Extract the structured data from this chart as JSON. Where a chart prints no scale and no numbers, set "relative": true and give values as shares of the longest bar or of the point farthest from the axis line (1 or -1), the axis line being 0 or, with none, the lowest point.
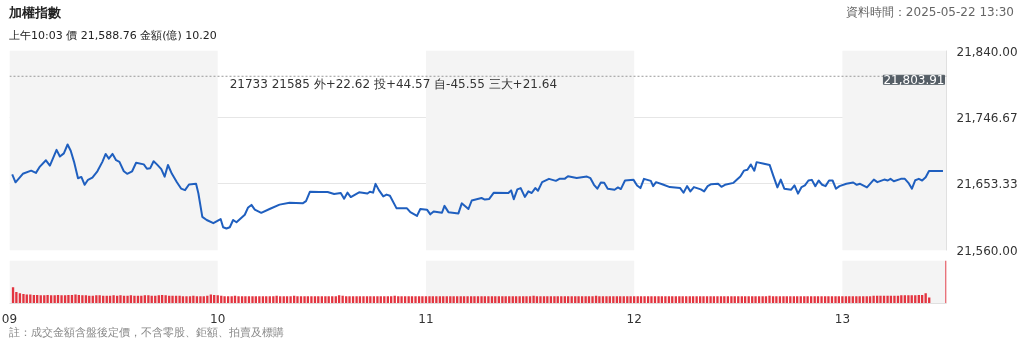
{
  "chart_data": [
    {
      "type": "line",
      "title": "加權指數",
      "subtitle": "上午10:03  價 21,588.76  金額(億) 10.20",
      "annotations": [
        "資料時間：2025-05-22 13:30",
        "21733  21585  外+22.62  投+44.57  自-45.55  三大+21.64"
      ],
      "xlim": [
        9,
        13.5
      ],
      "ylim": [
        21560,
        21840
      ],
      "yticks": [
        {
          "value": 21560,
          "label": "21,560.00"
        },
        {
          "value": 21653.33,
          "label": "21,653.33"
        },
        {
          "value": 21746.67,
          "label": "21,746.67"
        },
        {
          "value": 21840,
          "label": "21,840.00"
        }
      ],
      "tick_labels": "y",
      "grid": "y",
      "ref_lines": [
        {
          "axis": "y",
          "value": 21803.91,
          "label": "21,803.91",
          "color": "#999999",
          "line_style": "dotted"
        }
      ],
      "bands": [
        {
          "axis": "x",
          "from": 9,
          "to": 10,
          "label": null,
          "color": "#f4f4f4"
        },
        {
          "axis": "x",
          "from": 11,
          "to": 12,
          "label": null,
          "color": "#f4f4f4"
        },
        {
          "axis": "x",
          "from": 13,
          "to": 13.5,
          "label": null,
          "color": "#f4f4f4"
        }
      ],
      "series": [
        {
          "color": "#1f5fbf",
          "x": [
            9.013,
            9.029,
            9.064,
            9.104,
            9.127,
            9.146,
            9.175,
            9.194,
            9.226,
            9.242,
            9.261,
            9.279,
            9.294,
            9.31,
            9.329,
            9.345,
            9.361,
            9.377,
            9.398,
            9.422,
            9.446,
            9.462,
            9.477,
            9.495,
            9.512,
            9.528,
            9.549,
            9.565,
            9.589,
            9.608,
            9.645,
            9.66,
            9.676,
            9.692,
            9.708,
            9.729,
            9.745,
            9.761,
            9.78,
            9.804,
            9.824,
            9.843,
            9.862,
            9.896,
            9.907,
            9.926,
            9.947,
            9.979,
            10.014,
            10.026,
            10.042,
            10.058,
            10.074,
            10.09,
            10.13,
            10.146,
            10.162,
            10.178,
            10.209,
            10.249,
            10.297,
            10.345,
            10.408,
            10.424,
            10.443,
            10.488,
            10.528,
            10.559,
            10.591,
            10.607,
            10.623,
            10.639,
            10.679,
            10.719,
            10.731,
            10.746,
            10.758,
            10.774,
            10.795,
            10.811,
            10.827,
            10.859,
            10.909,
            10.925,
            10.957,
            10.973,
            11.005,
            11.021,
            11.037,
            11.077,
            11.089,
            11.108,
            11.156,
            11.172,
            11.204,
            11.22,
            11.267,
            11.283,
            11.304,
            11.326,
            11.396,
            11.409,
            11.422,
            11.439,
            11.455,
            11.475,
            11.492,
            11.508,
            11.525,
            11.538,
            11.558,
            11.591,
            11.624,
            11.641,
            11.666,
            11.682,
            11.724,
            11.773,
            11.79,
            11.807,
            11.823,
            11.84,
            11.856,
            11.873,
            11.906,
            11.922,
            11.936,
            11.956,
            11.997,
            12.014,
            12.03,
            12.047,
            12.08,
            12.091,
            12.105,
            12.138,
            12.171,
            12.221,
            12.237,
            12.254,
            12.27,
            12.287,
            12.32,
            12.336,
            12.353,
            12.37,
            12.403,
            12.419,
            12.436,
            12.477,
            12.494,
            12.51,
            12.527,
            12.544,
            12.56,
            12.577,
            12.588,
            12.618,
            12.651,
            12.668,
            12.688,
            12.704,
            12.721,
            12.754,
            12.77,
            12.787,
            12.804,
            12.82,
            12.837,
            12.853,
            12.87,
            12.886,
            12.903,
            12.919,
            12.936,
            12.953,
            12.969,
            12.986,
            13.019,
            13.052,
            13.069,
            13.085,
            13.118,
            13.151,
            13.168,
            13.201,
            13.218,
            13.231,
            13.247,
            13.281,
            13.3,
            13.317,
            13.334,
            13.35,
            13.367,
            13.383,
            13.4,
            13.416,
            13.483
          ],
          "values": [
            21666.5,
            21655.5,
            21667.4,
            21671.8,
            21668.7,
            21677.5,
            21686.3,
            21678.9,
            21700.9,
            21691.6,
            21696.0,
            21708.4,
            21699.6,
            21684.1,
            21661.2,
            21663.0,
            21652.0,
            21659.0,
            21662.1,
            21670.9,
            21684.1,
            21695.2,
            21688.6,
            21695.2,
            21686.4,
            21684.1,
            21670.9,
            21667.4,
            21670.9,
            21682.8,
            21680.6,
            21674.5,
            21675.3,
            21685.0,
            21680.6,
            21674.0,
            21663.4,
            21679.7,
            21667.4,
            21655.5,
            21646.7,
            21644.5,
            21652.4,
            21653.3,
            21640.1,
            21607.1,
            21602.7,
            21598.3,
            21604.0,
            21592.5,
            21590.8,
            21592.5,
            21602.7,
            21599.6,
            21610.1,
            21620.3,
            21623.8,
            21617.2,
            21612.8,
            21618.1,
            21624.2,
            21626.9,
            21626.0,
            21629.1,
            21642.3,
            21641.9,
            21641.9,
            21639.2,
            21640.5,
            21632.6,
            21641.0,
            21634.8,
            21641.4,
            21639.7,
            21642.3,
            21641.0,
            21653.3,
            21644.5,
            21635.7,
            21638.3,
            21636.6,
            21619.0,
            21619.0,
            21613.7,
            21608.4,
            21618.1,
            21617.2,
            21610.6,
            21614.5,
            21612.8,
            21622.5,
            21613.7,
            21611.9,
            21626.0,
            21618.1,
            21630.0,
            21633.5,
            21631.3,
            21632.2,
            21641.0,
            21640.5,
            21644.2,
            21631.8,
            21645.5,
            21647.4,
            21635.0,
            21642.8,
            21640.5,
            21647.4,
            21643.7,
            21655.7,
            21660.3,
            21657.5,
            21660.3,
            21660.3,
            21663.9,
            21661.6,
            21663.5,
            21661.2,
            21652.0,
            21646.5,
            21655.2,
            21654.7,
            21646.5,
            21645.1,
            21648.3,
            21646.0,
            21658.0,
            21658.9,
            21651.1,
            21647.4,
            21660.3,
            21657.5,
            21650.1,
            21655.7,
            21652.4,
            21648.8,
            21647.4,
            21640.9,
            21650.1,
            21642.8,
            21648.8,
            21645.5,
            21642.8,
            21650.1,
            21652.9,
            21653.4,
            21649.2,
            21652.0,
            21654.7,
            21659.3,
            21663.5,
            21671.8,
            21673.1,
            21680.5,
            21671.8,
            21683.7,
            21681.9,
            21679.6,
            21664.9,
            21648.3,
            21659.3,
            21646.5,
            21645.1,
            21651.1,
            21639.6,
            21648.8,
            21651.1,
            21658.0,
            21658.9,
            21650.1,
            21658.0,
            21652.0,
            21650.1,
            21658.0,
            21658.0,
            21646.5,
            21650.1,
            21653.4,
            21655.2,
            21652.0,
            21653.4,
            21648.3,
            21659.3,
            21655.7,
            21659.3,
            21658.0,
            21660.3,
            21657.0,
            21660.3,
            21660.3,
            21654.7,
            21646.5,
            21658.4,
            21660.3,
            21658.0,
            21662.6,
            21671.3,
            21671.3
          ]
        }
      ]
    },
    {
      "type": "bar",
      "relative": true,
      "annotations": [
        "註：成交金額含盤後定價，不含零股、鉅額、拍賣及標購"
      ],
      "xlim": [
        9,
        13.5
      ],
      "xticks": [
        {
          "value": 9,
          "label": "09"
        },
        {
          "value": 10,
          "label": "10"
        },
        {
          "value": 11,
          "label": "11"
        },
        {
          "value": 12,
          "label": "12"
        },
        {
          "value": 13,
          "label": "13"
        }
      ],
      "tick_labels": "x",
      "bands": [
        {
          "axis": "x",
          "from": 9,
          "to": 10,
          "label": null,
          "color": "#f4f4f4"
        },
        {
          "axis": "x",
          "from": 11,
          "to": 12,
          "label": null,
          "color": "#f4f4f4"
        },
        {
          "axis": "x",
          "from": 13,
          "to": 13.5,
          "label": null,
          "color": "#f4f4f4"
        }
      ],
      "series": [
        {
          "color": "#e3343f",
          "x": [
            9.017,
            9.033,
            9.05,
            9.067,
            9.083,
            9.1,
            9.117,
            9.133,
            9.15,
            9.167,
            9.183,
            9.2,
            9.217,
            9.233,
            9.25,
            9.267,
            9.283,
            9.3,
            9.317,
            9.333,
            9.35,
            9.367,
            9.383,
            9.4,
            9.417,
            9.433,
            9.45,
            9.467,
            9.483,
            9.5,
            9.517,
            9.533,
            9.55,
            9.567,
            9.583,
            9.6,
            9.617,
            9.633,
            9.65,
            9.667,
            9.683,
            9.7,
            9.717,
            9.733,
            9.75,
            9.767,
            9.783,
            9.8,
            9.817,
            9.833,
            9.85,
            9.867,
            9.883,
            9.9,
            9.917,
            9.933,
            9.95,
            9.967,
            9.983,
            10,
            10.017,
            10.033,
            10.05,
            10.067,
            10.083,
            10.1,
            10.117,
            10.133,
            10.15,
            10.167,
            10.183,
            10.2,
            10.217,
            10.233,
            10.25,
            10.267,
            10.283,
            10.3,
            10.317,
            10.333,
            10.35,
            10.367,
            10.383,
            10.4,
            10.417,
            10.433,
            10.45,
            10.467,
            10.483,
            10.5,
            10.517,
            10.533,
            10.55,
            10.567,
            10.583,
            10.6,
            10.617,
            10.633,
            10.65,
            10.667,
            10.683,
            10.7,
            10.717,
            10.733,
            10.75,
            10.767,
            10.783,
            10.8,
            10.817,
            10.833,
            10.85,
            10.867,
            10.883,
            10.9,
            10.917,
            10.933,
            10.95,
            10.967,
            10.983,
            11,
            11.017,
            11.033,
            11.05,
            11.067,
            11.083,
            11.1,
            11.117,
            11.133,
            11.15,
            11.167,
            11.183,
            11.2,
            11.217,
            11.233,
            11.25,
            11.267,
            11.283,
            11.3,
            11.317,
            11.333,
            11.35,
            11.367,
            11.383,
            11.4,
            11.417,
            11.433,
            11.45,
            11.467,
            11.483,
            11.5,
            11.517,
            11.533,
            11.55,
            11.567,
            11.583,
            11.6,
            11.617,
            11.633,
            11.65,
            11.667,
            11.683,
            11.7,
            11.717,
            11.733,
            11.75,
            11.767,
            11.783,
            11.8,
            11.817,
            11.833,
            11.85,
            11.867,
            11.883,
            11.9,
            11.917,
            11.933,
            11.95,
            11.967,
            11.983,
            12,
            12.017,
            12.033,
            12.05,
            12.067,
            12.083,
            12.1,
            12.117,
            12.133,
            12.15,
            12.167,
            12.183,
            12.2,
            12.217,
            12.233,
            12.25,
            12.267,
            12.283,
            12.3,
            12.317,
            12.333,
            12.35,
            12.367,
            12.383,
            12.4,
            12.417,
            12.433,
            12.45,
            12.467,
            12.483,
            12.5,
            12.517,
            12.533,
            12.55,
            12.567,
            12.583,
            12.6,
            12.617,
            12.633,
            12.65,
            12.667,
            12.683,
            12.7,
            12.717,
            12.733,
            12.75,
            12.767,
            12.783,
            12.8,
            12.817,
            12.833,
            12.85,
            12.867,
            12.883,
            12.9,
            12.917,
            12.933,
            12.95,
            12.967,
            12.983,
            13,
            13.017,
            13.033,
            13.05,
            13.067,
            13.083,
            13.1,
            13.117,
            13.133,
            13.15,
            13.167,
            13.183,
            13.2,
            13.217,
            13.233,
            13.25,
            13.267,
            13.283,
            13.3,
            13.317,
            13.333,
            13.35,
            13.367,
            13.383,
            13.4,
            13.417,
            13.5
          ],
          "values": [
            0.38,
            0.27,
            0.24,
            0.22,
            0.21,
            0.21,
            0.2,
            0.2,
            0.19,
            0.19,
            0.2,
            0.19,
            0.19,
            0.2,
            0.19,
            0.19,
            0.2,
            0.2,
            0.21,
            0.2,
            0.19,
            0.19,
            0.18,
            0.18,
            0.19,
            0.19,
            0.18,
            0.18,
            0.18,
            0.19,
            0.18,
            0.19,
            0.18,
            0.18,
            0.19,
            0.18,
            0.18,
            0.18,
            0.19,
            0.19,
            0.18,
            0.18,
            0.19,
            0.2,
            0.19,
            0.18,
            0.18,
            0.18,
            0.18,
            0.17,
            0.17,
            0.17,
            0.18,
            0.17,
            0.17,
            0.17,
            0.18,
            0.21,
            0.2,
            0.19,
            0.18,
            0.17,
            0.17,
            0.17,
            0.18,
            0.17,
            0.17,
            0.17,
            0.17,
            0.17,
            0.17,
            0.17,
            0.17,
            0.17,
            0.17,
            0.17,
            0.18,
            0.17,
            0.17,
            0.17,
            0.17,
            0.18,
            0.17,
            0.17,
            0.17,
            0.17,
            0.17,
            0.17,
            0.17,
            0.17,
            0.17,
            0.17,
            0.17,
            0.17,
            0.19,
            0.18,
            0.17,
            0.17,
            0.17,
            0.17,
            0.17,
            0.17,
            0.17,
            0.17,
            0.17,
            0.17,
            0.17,
            0.17,
            0.17,
            0.17,
            0.18,
            0.17,
            0.17,
            0.17,
            0.17,
            0.17,
            0.17,
            0.17,
            0.17,
            0.17,
            0.17,
            0.17,
            0.17,
            0.17,
            0.17,
            0.17,
            0.17,
            0.17,
            0.17,
            0.17,
            0.17,
            0.17,
            0.17,
            0.17,
            0.17,
            0.17,
            0.17,
            0.17,
            0.17,
            0.17,
            0.17,
            0.17,
            0.17,
            0.17,
            0.17,
            0.17,
            0.17,
            0.17,
            0.17,
            0.17,
            0.18,
            0.17,
            0.17,
            0.17,
            0.17,
            0.17,
            0.17,
            0.17,
            0.17,
            0.17,
            0.17,
            0.17,
            0.17,
            0.17,
            0.17,
            0.17,
            0.17,
            0.17,
            0.18,
            0.17,
            0.17,
            0.17,
            0.17,
            0.17,
            0.17,
            0.17,
            0.17,
            0.17,
            0.17,
            0.17,
            0.17,
            0.17,
            0.17,
            0.17,
            0.17,
            0.17,
            0.17,
            0.17,
            0.17,
            0.17,
            0.17,
            0.17,
            0.17,
            0.17,
            0.17,
            0.17,
            0.17,
            0.17,
            0.17,
            0.17,
            0.17,
            0.17,
            0.17,
            0.17,
            0.17,
            0.17,
            0.17,
            0.17,
            0.17,
            0.17,
            0.17,
            0.17,
            0.17,
            0.17,
            0.17,
            0.17,
            0.17,
            0.17,
            0.18,
            0.17,
            0.17,
            0.17,
            0.17,
            0.17,
            0.17,
            0.17,
            0.17,
            0.17,
            0.17,
            0.17,
            0.17,
            0.17,
            0.17,
            0.17,
            0.17,
            0.17,
            0.17,
            0.17,
            0.17,
            0.17,
            0.17,
            0.17,
            0.17,
            0.17,
            0.17,
            0.17,
            0.17,
            0.17,
            0.18,
            0.18,
            0.18,
            0.18,
            0.18,
            0.18,
            0.18,
            0.18,
            0.19,
            0.19,
            0.19,
            0.19,
            0.19,
            0.2,
            0.2,
            0.24,
            0.14,
            1.0
          ]
        }
      ]
    }
  ]
}
